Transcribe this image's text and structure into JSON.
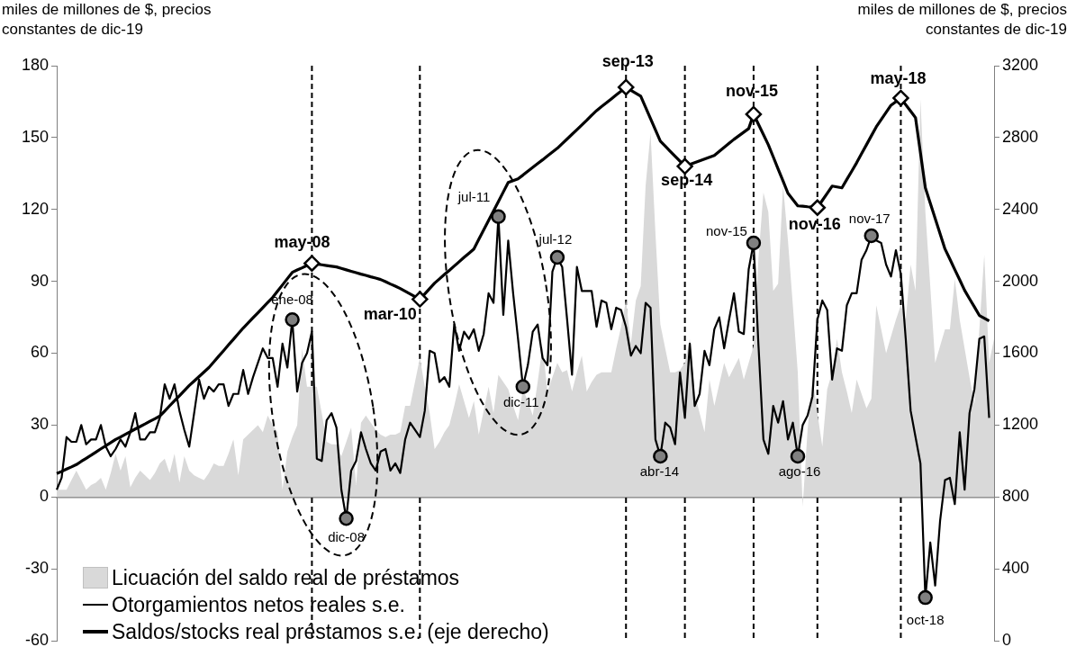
{
  "chart_data": {
    "type": "line",
    "ylabel": "miles de millones de $, precios constantes de dic-19",
    "y2label": "miles de millones de $, precios constantes de dic-19",
    "categories": [
      null,
      null,
      null,
      null,
      null,
      null,
      null,
      null,
      null,
      null,
      null,
      null,
      null,
      null,
      null,
      null,
      null,
      null,
      null,
      null,
      null,
      null,
      null,
      null,
      null,
      null,
      null,
      null,
      null,
      null,
      null,
      null,
      null,
      null,
      null,
      null,
      null,
      null,
      null,
      null,
      null,
      null,
      null,
      null,
      null,
      null,
      null,
      null,
      null,
      null,
      null,
      null,
      null,
      null,
      null,
      null,
      null,
      null,
      null,
      null,
      null,
      null,
      null,
      null,
      null,
      null,
      null,
      null,
      null,
      null,
      null,
      null,
      null,
      null,
      null,
      null,
      null,
      null,
      null,
      null,
      null,
      null,
      null,
      null,
      null,
      null,
      null,
      null,
      null,
      null,
      null,
      null,
      null,
      null,
      null,
      null,
      null,
      null,
      null,
      null,
      null,
      null,
      null,
      null,
      null,
      null,
      null,
      null,
      null,
      null,
      null,
      null,
      null,
      null,
      null,
      null,
      null,
      null,
      null,
      null,
      null,
      null,
      null,
      null,
      null,
      null,
      null,
      null,
      null,
      null,
      null,
      null,
      null,
      null,
      null,
      null,
      null,
      null,
      null,
      null,
      null,
      null,
      null,
      null,
      null,
      null,
      null,
      null,
      null,
      null,
      null,
      null,
      null,
      null,
      null,
      null,
      null,
      null,
      null,
      null,
      null,
      null,
      null,
      null,
      null,
      null,
      null,
      null,
      null,
      null,
      null,
      null,
      null,
      null,
      null,
      null,
      null,
      null,
      null,
      null,
      null,
      null,
      null,
      null,
      null,
      null,
      null,
      null,
      null,
      null,
      null,
      null
    ],
    "ylim": [
      -60,
      180
    ],
    "yticks": [
      -60,
      -30,
      0,
      30,
      60,
      90,
      120,
      150,
      180
    ],
    "y2lim": [
      0,
      3200
    ],
    "y2ticks": [
      0,
      400,
      800,
      1200,
      1600,
      2000,
      2400,
      2800,
      3200
    ],
    "tick_labels": "y",
    "grid": false,
    "legend": "bottom left",
    "series": [
      {
        "name": "Licuación del saldo real de préstamos",
        "type": "area",
        "color": "#d9d9d9",
        "values": [
          3,
          3,
          3,
          7,
          11,
          7,
          3,
          5,
          6,
          8,
          3,
          10,
          18,
          11,
          17,
          4,
          8,
          11,
          9,
          7,
          10,
          14,
          16,
          10,
          18,
          6,
          17,
          11,
          9,
          8,
          7,
          10,
          14,
          13,
          13,
          18,
          24,
          9,
          24,
          26,
          28,
          30,
          27,
          34,
          30,
          27,
          3,
          19,
          25,
          30,
          62,
          46,
          46,
          46,
          35,
          23,
          22,
          22,
          17,
          23,
          29,
          5,
          31,
          34,
          31,
          28,
          26,
          25,
          26,
          26,
          27,
          38,
          38,
          48,
          58,
          46,
          35,
          20,
          23,
          27,
          30,
          38,
          47,
          40,
          33,
          40,
          26,
          36,
          46,
          35,
          51,
          48,
          45,
          38,
          32,
          45,
          40,
          34,
          48,
          63,
          44,
          50,
          56,
          52,
          53,
          44,
          52,
          59,
          44,
          48,
          51,
          52,
          52,
          52,
          62,
          71,
          82,
          64,
          82,
          88,
          130,
          152,
          110,
          72,
          62,
          52,
          52,
          53,
          56,
          66,
          43,
          35,
          27,
          49,
          38,
          47,
          56,
          50,
          54,
          58,
          49,
          56,
          63,
          100,
          127,
          119,
          86,
          89,
          130,
          107,
          80,
          52,
          -4,
          28,
          50,
          35,
          21,
          45,
          52,
          66,
          52,
          44,
          35,
          49,
          43,
          37,
          41,
          80,
          70,
          60,
          67,
          74,
          80,
          74,
          97,
          86,
          166,
          119,
          88,
          56,
          63,
          70,
          70,
          91,
          74,
          62,
          50,
          39,
          70,
          101,
          56,
          66
        ]
      },
      {
        "name": "Otorgamientos netos reales s.e.",
        "type": "line",
        "color": "#000000",
        "values": [
          3,
          8,
          25,
          23,
          23,
          30,
          22,
          24,
          24,
          30,
          21,
          17,
          20,
          24,
          21,
          27,
          35,
          24,
          24,
          27,
          27,
          33,
          47,
          41,
          47,
          36,
          28,
          21,
          35,
          49,
          41,
          46,
          44,
          47,
          47,
          38,
          43,
          43,
          53,
          43,
          50,
          56,
          62,
          58,
          58,
          46,
          64,
          54,
          74,
          44,
          56,
          60,
          69,
          16,
          15,
          32,
          35,
          29,
          3,
          -9,
          11,
          15,
          27,
          20,
          14,
          11,
          19,
          20,
          11,
          14,
          10,
          24,
          31,
          28,
          25,
          36,
          61,
          60,
          48,
          50,
          46,
          72,
          61,
          69,
          66,
          70,
          61,
          68,
          85,
          81,
          117,
          76,
          107,
          85,
          66,
          46,
          55,
          69,
          72,
          58,
          55,
          94,
          100,
          96,
          74,
          51,
          96,
          86,
          86,
          86,
          71,
          82,
          81,
          70,
          79,
          78,
          71,
          59,
          63,
          60,
          81,
          79,
          24,
          17,
          31,
          29,
          22,
          52,
          33,
          64,
          38,
          43,
          61,
          55,
          70,
          75,
          62,
          74,
          85,
          69,
          68,
          95,
          106,
          63,
          24,
          18,
          38,
          31,
          40,
          24,
          31,
          17,
          30,
          34,
          42,
          74,
          82,
          78,
          49,
          62,
          61,
          80,
          85,
          85,
          99,
          103,
          109,
          107,
          106,
          97,
          92,
          103,
          93,
          66,
          36,
          25,
          14,
          -42,
          -19,
          -37,
          -10,
          7,
          8,
          -3,
          27,
          3,
          35,
          45,
          66,
          67,
          33,
          null
        ]
      },
      {
        "name": "Saldos/stocks real préstamos s.e. (eje derecho)",
        "type": "line",
        "axis": "y2",
        "color": "#000000",
        "values": [
          930,
          942,
          955,
          967,
          980,
          998,
          1015,
          1032,
          1050,
          1068,
          1085,
          1102,
          1120,
          1134,
          1149,
          1163,
          1178,
          1192,
          1206,
          1221,
          1235,
          1250,
          1278,
          1307,
          1335,
          1363,
          1392,
          1420,
          1445,
          1470,
          1495,
          1520,
          1551,
          1583,
          1614,
          1646,
          1677,
          1709,
          1740,
          1768,
          1797,
          1825,
          1853,
          1882,
          1910,
          1945,
          1980,
          2015,
          2050,
          2063,
          2075,
          2088,
          2100,
          2096,
          2092,
          2088,
          2084,
          2080,
          2072,
          2064,
          2056,
          2048,
          2040,
          2033,
          2025,
          2018,
          2010,
          1998,
          1985,
          1973,
          1960,
          1945,
          1930,
          1915,
          1900,
          1930,
          1960,
          1990,
          2014,
          2038,
          2061,
          2085,
          2109,
          2133,
          2156,
          2180,
          2233,
          2286,
          2339,
          2391,
          2444,
          2497,
          2550,
          2560,
          2570,
          2591,
          2613,
          2634,
          2655,
          2676,
          2698,
          2719,
          2740,
          2766,
          2792,
          2818,
          2844,
          2870,
          2896,
          2924,
          2950,
          2972,
          2993,
          3015,
          3037,
          3058,
          3080,
          3063,
          3047,
          3030,
          2968,
          2905,
          2843,
          2780,
          2752,
          2724,
          2696,
          2668,
          2640,
          2650,
          2660,
          2670,
          2680,
          2690,
          2700,
          2723,
          2745,
          2768,
          2790,
          2810,
          2830,
          2850,
          2930,
          2873,
          2817,
          2760,
          2693,
          2625,
          2558,
          2490,
          2455,
          2420,
          2418,
          2415,
          2413,
          2410,
          2450,
          2490,
          2530,
          2525,
          2520,
          2567,
          2613,
          2660,
          2710,
          2760,
          2810,
          2860,
          2900,
          2940,
          2980,
          3000,
          3020,
          2983,
          2947,
          2910,
          2715,
          2520,
          2435,
          2350,
          2265,
          2180,
          2123,
          2065,
          2008,
          1950,
          1903,
          1857,
          1810,
          1795,
          1780,
          null
        ]
      },
      {
        "type": "scatter",
        "marker": "circle",
        "color": "#808080",
        "values": [
          null,
          null,
          null,
          null,
          null,
          null,
          null,
          null,
          null,
          null,
          null,
          null,
          null,
          null,
          null,
          null,
          null,
          null,
          null,
          null,
          null,
          null,
          null,
          null,
          null,
          null,
          null,
          null,
          null,
          null,
          null,
          null,
          null,
          null,
          null,
          null,
          null,
          null,
          null,
          null,
          null,
          null,
          null,
          null,
          null,
          null,
          null,
          null,
          74,
          null,
          null,
          null,
          null,
          null,
          null,
          null,
          null,
          null,
          null,
          -9,
          null,
          null,
          null,
          null,
          null,
          null,
          null,
          null,
          null,
          null,
          null,
          null,
          null,
          null,
          null,
          null,
          null,
          null,
          null,
          null,
          null,
          null,
          null,
          null,
          null,
          null,
          null,
          null,
          null,
          null,
          117,
          null,
          null,
          null,
          null,
          46,
          null,
          null,
          null,
          null,
          null,
          null,
          100,
          null,
          null,
          null,
          null,
          null,
          null,
          null,
          null,
          null,
          null,
          null,
          null,
          null,
          null,
          null,
          null,
          null,
          null,
          null,
          null,
          17,
          null,
          null,
          null,
          null,
          null,
          null,
          null,
          null,
          null,
          null,
          null,
          null,
          null,
          null,
          null,
          null,
          null,
          null,
          106,
          null,
          null,
          null,
          null,
          null,
          null,
          null,
          null,
          17,
          null,
          null,
          null,
          null,
          null,
          null,
          null,
          null,
          null,
          null,
          null,
          null,
          null,
          null,
          109,
          null,
          null,
          null,
          null,
          null,
          null,
          null,
          null,
          null,
          null,
          -42,
          null,
          null,
          null,
          null,
          null,
          null,
          null,
          null,
          null,
          null,
          null,
          null,
          null,
          null
        ],
        "value_labels": [
          null,
          null,
          null,
          null,
          null,
          null,
          null,
          null,
          null,
          null,
          null,
          null,
          null,
          null,
          null,
          null,
          null,
          null,
          null,
          null,
          null,
          null,
          null,
          null,
          null,
          null,
          null,
          null,
          null,
          null,
          null,
          null,
          null,
          null,
          null,
          null,
          null,
          null,
          null,
          null,
          null,
          null,
          null,
          null,
          null,
          null,
          null,
          null,
          "ene-08",
          null,
          null,
          null,
          null,
          null,
          null,
          null,
          null,
          null,
          null,
          "dic-08",
          null,
          null,
          null,
          null,
          null,
          null,
          null,
          null,
          null,
          null,
          null,
          null,
          null,
          null,
          null,
          null,
          null,
          null,
          null,
          null,
          null,
          null,
          null,
          null,
          null,
          null,
          null,
          null,
          null,
          null,
          "jul-11",
          null,
          null,
          null,
          null,
          "dic-11",
          null,
          null,
          null,
          null,
          null,
          null,
          "jul-12",
          null,
          null,
          null,
          null,
          null,
          null,
          null,
          null,
          null,
          null,
          null,
          null,
          null,
          null,
          null,
          null,
          null,
          null,
          null,
          null,
          "abr-14",
          null,
          null,
          null,
          null,
          null,
          null,
          null,
          null,
          null,
          null,
          null,
          null,
          null,
          null,
          null,
          null,
          null,
          null,
          "nov-15",
          null,
          null,
          null,
          null,
          null,
          null,
          null,
          null,
          "ago-16",
          null,
          null,
          null,
          null,
          null,
          null,
          null,
          null,
          null,
          null,
          null,
          null,
          null,
          null,
          "nov-17",
          null,
          null,
          null,
          null,
          null,
          null,
          null,
          null,
          null,
          null,
          "oct-18",
          null,
          null,
          null,
          null,
          null,
          null,
          null,
          null,
          null,
          null,
          null,
          null,
          null,
          null
        ]
      },
      {
        "type": "scatter",
        "marker": "diamond",
        "axis": "y2",
        "color": "#ffffff",
        "values": [
          null,
          null,
          null,
          null,
          null,
          null,
          null,
          null,
          null,
          null,
          null,
          null,
          null,
          null,
          null,
          null,
          null,
          null,
          null,
          null,
          null,
          null,
          null,
          null,
          null,
          null,
          null,
          null,
          null,
          null,
          null,
          null,
          null,
          null,
          null,
          null,
          null,
          null,
          null,
          null,
          null,
          null,
          null,
          null,
          null,
          null,
          null,
          null,
          null,
          null,
          null,
          null,
          2100,
          null,
          null,
          null,
          null,
          null,
          null,
          null,
          null,
          null,
          null,
          null,
          null,
          null,
          null,
          null,
          null,
          null,
          null,
          null,
          null,
          null,
          1900,
          null,
          null,
          null,
          null,
          null,
          null,
          null,
          null,
          null,
          null,
          null,
          null,
          null,
          null,
          null,
          null,
          null,
          null,
          null,
          null,
          null,
          null,
          null,
          null,
          null,
          null,
          null,
          null,
          null,
          null,
          null,
          null,
          null,
          null,
          null,
          null,
          null,
          null,
          null,
          null,
          null,
          3080,
          null,
          null,
          null,
          null,
          null,
          null,
          null,
          null,
          null,
          null,
          null,
          2640,
          null,
          null,
          null,
          null,
          null,
          null,
          null,
          null,
          null,
          null,
          null,
          null,
          null,
          2930,
          null,
          null,
          null,
          null,
          null,
          null,
          null,
          null,
          null,
          null,
          null,
          null,
          2410,
          null,
          null,
          null,
          null,
          null,
          null,
          null,
          null,
          null,
          null,
          null,
          null,
          null,
          null,
          null,
          null,
          3020,
          null,
          null,
          null,
          null,
          null,
          null,
          null,
          null,
          null,
          null,
          null,
          null,
          null,
          null,
          null,
          null,
          null,
          null,
          null
        ],
        "value_labels": [
          null,
          null,
          null,
          null,
          null,
          null,
          null,
          null,
          null,
          null,
          null,
          null,
          null,
          null,
          null,
          null,
          null,
          null,
          null,
          null,
          null,
          null,
          null,
          null,
          null,
          null,
          null,
          null,
          null,
          null,
          null,
          null,
          null,
          null,
          null,
          null,
          null,
          null,
          null,
          null,
          null,
          null,
          null,
          null,
          null,
          null,
          null,
          null,
          null,
          null,
          null,
          null,
          "may-08",
          null,
          null,
          null,
          null,
          null,
          null,
          null,
          null,
          null,
          null,
          null,
          null,
          null,
          null,
          null,
          null,
          null,
          null,
          null,
          null,
          null,
          "mar-10",
          null,
          null,
          null,
          null,
          null,
          null,
          null,
          null,
          null,
          null,
          null,
          null,
          null,
          null,
          null,
          null,
          null,
          null,
          null,
          null,
          null,
          null,
          null,
          null,
          null,
          null,
          null,
          null,
          null,
          null,
          null,
          null,
          null,
          null,
          null,
          null,
          null,
          null,
          null,
          null,
          null,
          "sep-13",
          null,
          null,
          null,
          null,
          null,
          null,
          null,
          null,
          null,
          null,
          null,
          "sep-14",
          null,
          null,
          null,
          null,
          null,
          null,
          null,
          null,
          null,
          null,
          null,
          null,
          null,
          "nov-15",
          null,
          null,
          null,
          null,
          null,
          null,
          null,
          null,
          null,
          null,
          null,
          null,
          "nov-16",
          null,
          null,
          null,
          null,
          null,
          null,
          null,
          null,
          null,
          null,
          null,
          null,
          null,
          null,
          null,
          null,
          "may-18",
          null,
          null,
          null,
          null,
          null,
          null,
          null,
          null,
          null,
          null,
          null,
          null,
          null,
          null,
          null,
          null,
          null,
          null,
          null
        ]
      }
    ]
  }
}
